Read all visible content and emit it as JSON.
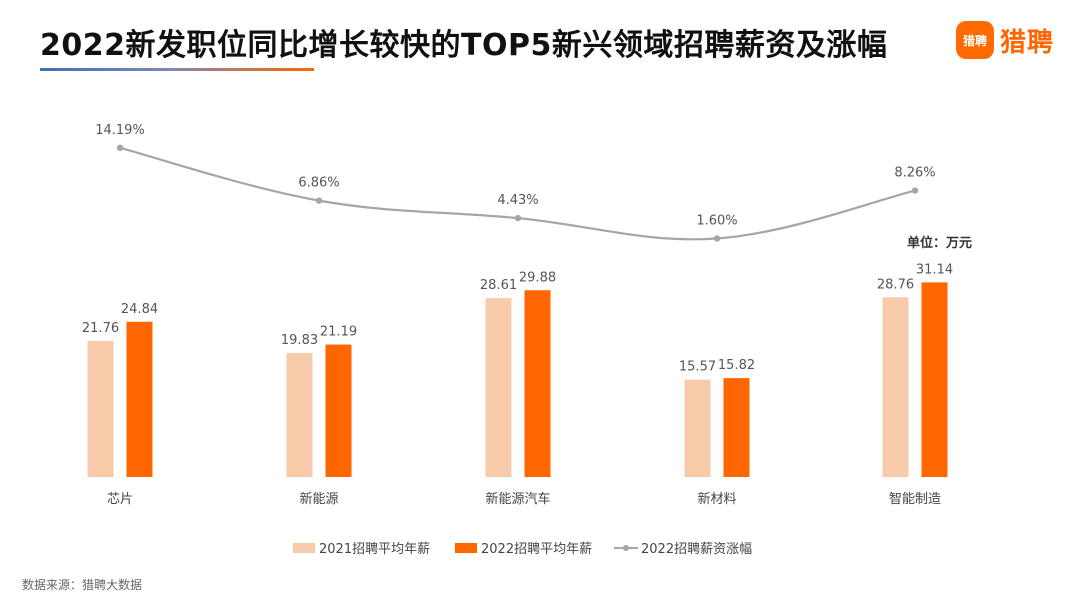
{
  "header": {
    "title": "2022新发职位同比增长较快的TOP5新兴领域招聘薪资及涨幅",
    "logo_mark": "猎聘",
    "logo_text": "猎聘"
  },
  "unit_label": "单位：万元",
  "source": "数据来源：猎聘大数据",
  "colors": {
    "series_2021": "#f7cbaa",
    "series_2022": "#ff6600",
    "series_growth": "#a6a6a6",
    "accent": "#ff6600"
  },
  "chart_data": {
    "type": "bar",
    "categories": [
      "芯片",
      "新能源",
      "新能源汽车",
      "新材料",
      "智能制造"
    ],
    "series": [
      {
        "name": "2021招聘平均年薪",
        "type": "bar",
        "values": [
          21.76,
          19.83,
          28.61,
          15.57,
          28.76
        ]
      },
      {
        "name": "2022招聘平均年薪",
        "type": "bar",
        "values": [
          24.84,
          21.19,
          29.88,
          15.82,
          31.14
        ]
      },
      {
        "name": "2022招聘薪资涨幅",
        "type": "line",
        "values": [
          14.19,
          6.86,
          4.43,
          1.6,
          8.26
        ],
        "labels": [
          "14.19%",
          "6.86%",
          "4.43%",
          "1.60%",
          "8.26%"
        ]
      }
    ],
    "legend_position": "bottom",
    "grid": false
  }
}
